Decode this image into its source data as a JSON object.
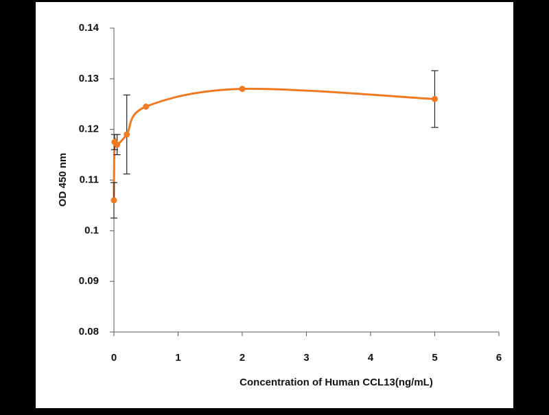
{
  "chart_data": {
    "type": "line",
    "x_label": "Concentration of Human CCL13(ng/mL)",
    "y_label": "OD 450 nm",
    "x": [
      0,
      0.01,
      0.05,
      0.2,
      0.5,
      2,
      5
    ],
    "series": [
      {
        "color": "#f07a22",
        "values": [
          0.106,
          0.1175,
          0.117,
          0.119,
          0.1245,
          0.128,
          0.126
        ],
        "errors": [
          0.0035,
          0.0015,
          0.002,
          0.0078,
          null,
          null,
          0.0056
        ]
      }
    ],
    "xlim": [
      0,
      6
    ],
    "xticks": [
      0,
      1,
      2,
      3,
      4,
      5,
      6
    ],
    "ylim": [
      0.08,
      0.14
    ],
    "yticks": [
      0.08,
      0.09,
      0.1,
      0.11,
      0.12,
      0.13,
      0.14
    ],
    "grid": false,
    "smooth": true
  }
}
